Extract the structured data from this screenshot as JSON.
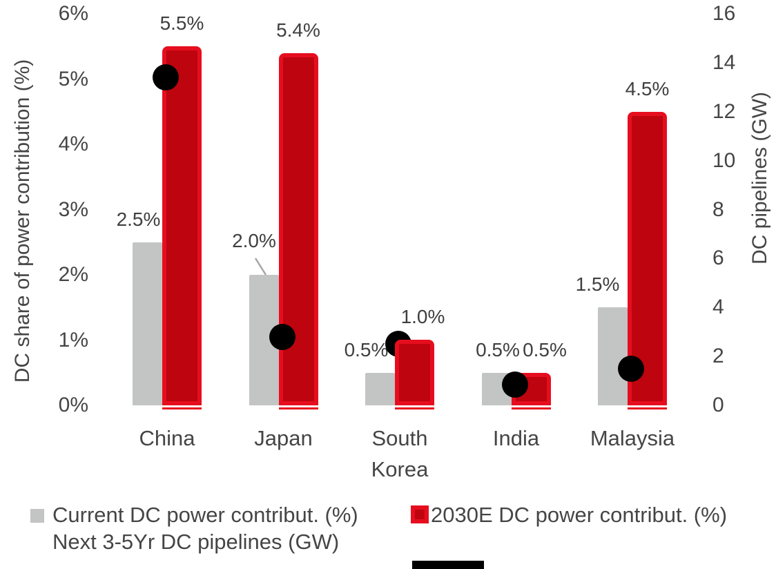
{
  "chart_data": {
    "type": "combo_bar_scatter",
    "categories": [
      "China",
      "Japan",
      "South Korea",
      "India",
      "Malaysia"
    ],
    "series": [
      {
        "name": "Current DC power contribut. (%)",
        "type": "bar",
        "axis": "left",
        "values": [
          2.5,
          2.0,
          0.5,
          0.5,
          1.5
        ],
        "data_labels": [
          "2.5%",
          "2.0%",
          "0.5%",
          "0.5%",
          "1.5%"
        ]
      },
      {
        "name": "2030E DC power contribut. (%)",
        "type": "bar",
        "axis": "left",
        "values": [
          5.5,
          5.4,
          1.0,
          0.5,
          4.5
        ],
        "data_labels": [
          "5.5%",
          "5.4%",
          "1.0%",
          "0.5%",
          "4.5%"
        ]
      },
      {
        "name": "Next 3-5Yr DC pipelines (GW)",
        "type": "scatter",
        "axis": "right",
        "values": [
          13.4,
          2.8,
          2.5,
          0.85,
          1.5
        ]
      }
    ],
    "left_axis": {
      "title": "DC share of power contribution (%)",
      "min": 0,
      "max": 6,
      "tick_step": 1,
      "tick_labels": [
        "0%",
        "1%",
        "2%",
        "3%",
        "4%",
        "5%",
        "6%"
      ]
    },
    "right_axis": {
      "title": "DC pipelines (GW)",
      "min": 0,
      "max": 16,
      "tick_step": 2,
      "tick_labels": [
        "0",
        "2",
        "4",
        "6",
        "8",
        "10",
        "12",
        "14",
        "16"
      ]
    },
    "grid": "off",
    "legend_position": "bottom",
    "annotations": {
      "japan_label_leader_line": true
    }
  },
  "colors": {
    "bar_gray": "#c3c4c4",
    "bar_red_fill": "#bd040f",
    "bar_red_border": "#e60e1e",
    "dot_black": "#000000",
    "text_gray": "#454545",
    "leader_line": "#a6a6a6"
  }
}
